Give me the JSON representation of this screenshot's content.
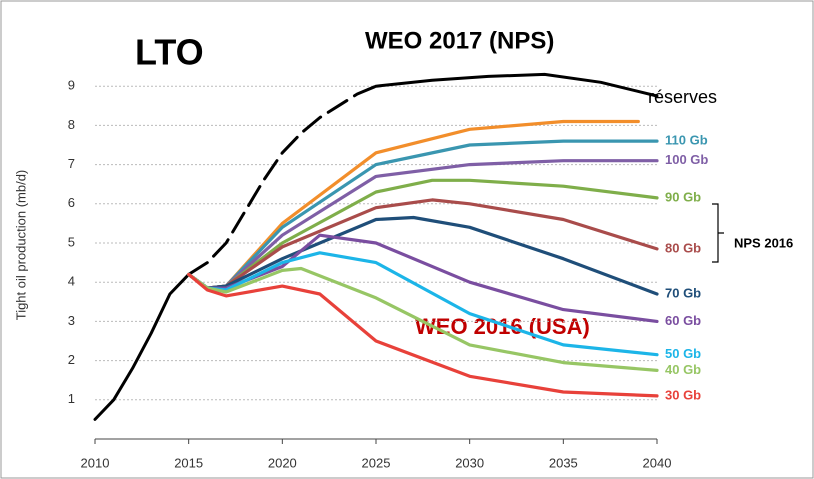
{
  "chart_data": {
    "type": "line",
    "ylabel": "Tight oil production (mb/d)",
    "annotations": [
      "LTO",
      "WEO 2017 (NPS)",
      "réserves",
      "WEO 2016 (USA)",
      "NPS 2016"
    ],
    "xlim": [
      2010,
      2040
    ],
    "xticks": [
      2010,
      2015,
      2020,
      2025,
      2030,
      2035,
      2040
    ],
    "ylim": [
      0,
      9.5
    ],
    "yticks": [
      1,
      2,
      3,
      4,
      5,
      6,
      7,
      8,
      9
    ],
    "grid": true,
    "series": [
      {
        "color": "#000000",
        "dashed": false,
        "x": [
          2010,
          2011,
          2012,
          2013,
          2014,
          2015
        ],
        "values": [
          0.5,
          1.0,
          1.8,
          2.7,
          3.7,
          4.2
        ]
      },
      {
        "color": "#000000",
        "dashed": true,
        "x": [
          2015,
          2016,
          2017,
          2018,
          2019,
          2020,
          2021,
          2022,
          2023,
          2024,
          2025
        ],
        "values": [
          4.2,
          4.5,
          5.0,
          5.8,
          6.6,
          7.3,
          7.8,
          8.2,
          8.5,
          8.8,
          9.0
        ]
      },
      {
        "color": "#000000",
        "dashed": false,
        "x": [
          2025,
          2028,
          2031,
          2034,
          2037,
          2040
        ],
        "values": [
          9.0,
          9.15,
          9.25,
          9.3,
          9.1,
          8.75
        ]
      },
      {
        "color": "#f28e2b",
        "x": [
          2015,
          2016,
          2017,
          2020,
          2025,
          2030,
          2035,
          2039
        ],
        "values": [
          4.2,
          3.85,
          3.9,
          5.5,
          7.3,
          7.9,
          8.1,
          8.1
        ]
      },
      {
        "name": "110 Gb",
        "color": "#3a96b0",
        "x": [
          2015,
          2016,
          2017,
          2020,
          2025,
          2030,
          2035,
          2040
        ],
        "values": [
          4.2,
          3.85,
          3.9,
          5.4,
          7.0,
          7.5,
          7.6,
          7.6
        ]
      },
      {
        "name": "100 Gb",
        "color": "#7f5fa6",
        "x": [
          2015,
          2016,
          2017,
          2020,
          2025,
          2030,
          2035,
          2040
        ],
        "values": [
          4.2,
          3.85,
          3.9,
          5.2,
          6.7,
          7.0,
          7.1,
          7.1
        ]
      },
      {
        "name": "90 Gb",
        "color": "#7fae4a",
        "x": [
          2015,
          2016,
          2017,
          2020,
          2025,
          2028,
          2030,
          2035,
          2040
        ],
        "values": [
          4.2,
          3.85,
          3.9,
          5.0,
          6.3,
          6.6,
          6.6,
          6.45,
          6.15
        ]
      },
      {
        "name": "80 Gb",
        "color": "#a94c4b",
        "x": [
          2015,
          2016,
          2017,
          2020,
          2025,
          2028,
          2030,
          2035,
          2040
        ],
        "values": [
          4.2,
          3.85,
          3.9,
          4.9,
          5.9,
          6.1,
          6.0,
          5.6,
          4.85
        ]
      },
      {
        "name": "70 Gb",
        "color": "#1f4e79",
        "x": [
          2015,
          2016,
          2017,
          2020,
          2025,
          2027,
          2030,
          2035,
          2040
        ],
        "values": [
          4.2,
          3.85,
          3.9,
          4.6,
          5.6,
          5.65,
          5.4,
          4.6,
          3.7
        ]
      },
      {
        "name": "60 Gb",
        "color": "#7a4ea0",
        "x": [
          2015,
          2016,
          2017,
          2020,
          2022,
          2025,
          2030,
          2035,
          2040
        ],
        "values": [
          4.2,
          3.85,
          3.85,
          4.4,
          5.2,
          5.0,
          4.0,
          3.3,
          3.0
        ]
      },
      {
        "name": "50 Gb",
        "color": "#1cb5e8",
        "x": [
          2015,
          2016,
          2017,
          2020,
          2022,
          2025,
          2030,
          2035,
          2040
        ],
        "values": [
          4.2,
          3.85,
          3.8,
          4.5,
          4.75,
          4.5,
          3.2,
          2.4,
          2.15
        ]
      },
      {
        "name": "40 Gb",
        "color": "#97c665",
        "x": [
          2015,
          2016,
          2017,
          2020,
          2021,
          2025,
          2030,
          2035,
          2040
        ],
        "values": [
          4.2,
          3.85,
          3.75,
          4.3,
          4.35,
          3.6,
          2.4,
          1.95,
          1.75
        ]
      },
      {
        "name": "30 Gb",
        "color": "#e8413a",
        "x": [
          2015,
          2016,
          2017,
          2020,
          2022,
          2025,
          2030,
          2035,
          2040
        ],
        "values": [
          4.2,
          3.8,
          3.65,
          3.9,
          3.7,
          2.5,
          1.6,
          1.2,
          1.1
        ]
      }
    ]
  }
}
